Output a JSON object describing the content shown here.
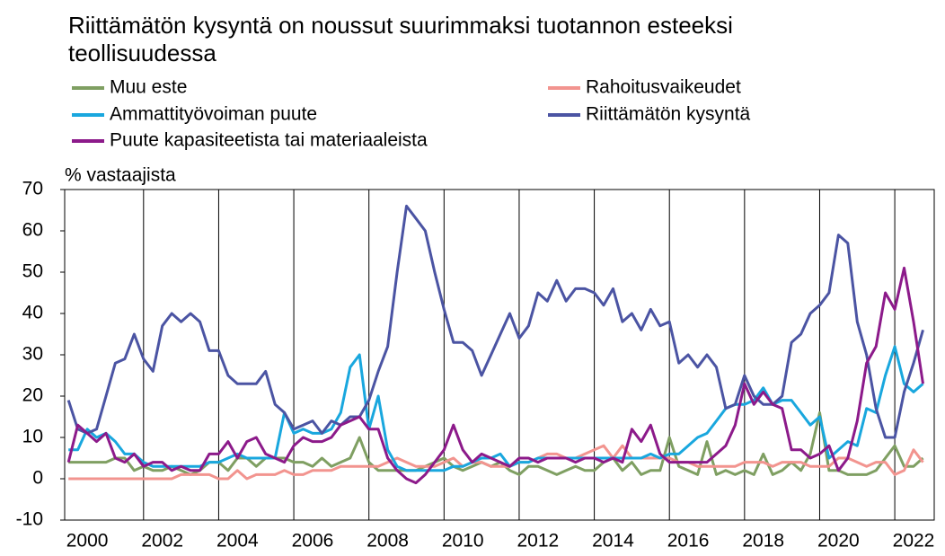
{
  "chart_data": {
    "type": "line",
    "title": "Riittämätön kysyntä on noussut suurimmaksi tuotannon esteeksi teollisuudessa",
    "ylabel": "% vastaajista",
    "x": [
      2000,
      2000.25,
      2000.5,
      2000.75,
      2001,
      2001.25,
      2001.5,
      2001.75,
      2002,
      2002.25,
      2002.5,
      2002.75,
      2003,
      2003.25,
      2003.5,
      2003.75,
      2004,
      2004.25,
      2004.5,
      2004.75,
      2005,
      2005.25,
      2005.5,
      2005.75,
      2006,
      2006.25,
      2006.5,
      2006.75,
      2007,
      2007.25,
      2007.5,
      2007.75,
      2008,
      2008.25,
      2008.5,
      2008.75,
      2009,
      2009.25,
      2009.5,
      2009.75,
      2010,
      2010.25,
      2010.5,
      2010.75,
      2011,
      2011.25,
      2011.5,
      2011.75,
      2012,
      2012.25,
      2012.5,
      2012.75,
      2013,
      2013.25,
      2013.5,
      2013.75,
      2014,
      2014.25,
      2014.5,
      2014.75,
      2015,
      2015.25,
      2015.5,
      2015.75,
      2016,
      2016.25,
      2016.5,
      2016.75,
      2017,
      2017.25,
      2017.5,
      2017.75,
      2018,
      2018.25,
      2018.5,
      2018.75,
      2019,
      2019.25,
      2019.5,
      2019.75,
      2020,
      2020.25,
      2020.5,
      2020.75,
      2021,
      2021.25,
      2021.5,
      2021.75,
      2022,
      2022.25,
      2022.5,
      2022.75
    ],
    "series": [
      {
        "name": "Muu este",
        "color": "#7f9f62",
        "values": [
          4,
          4,
          4,
          4,
          4,
          5,
          5,
          2,
          3,
          2,
          2,
          3,
          2,
          1,
          2,
          4,
          4,
          2,
          5,
          5,
          3,
          5,
          5,
          5,
          4,
          4,
          3,
          5,
          3,
          4,
          5,
          10,
          4,
          2,
          2,
          2,
          2,
          2,
          3,
          4,
          5,
          3,
          2,
          3,
          4,
          3,
          4,
          2,
          1,
          3,
          3,
          2,
          1,
          2,
          3,
          2,
          2,
          4,
          5,
          2,
          4,
          1,
          2,
          2,
          10,
          3,
          2,
          1,
          9,
          1,
          2,
          1,
          2,
          1,
          6,
          1,
          2,
          4,
          2,
          6,
          16,
          2,
          2,
          1,
          1,
          1,
          2,
          5,
          8,
          3,
          3,
          5
        ]
      },
      {
        "name": "Rahoitusvaikeudet",
        "color": "#f2948f",
        "values": [
          0,
          0,
          0,
          0,
          0,
          0,
          0,
          0,
          0,
          0,
          0,
          0,
          1,
          1,
          1,
          1,
          0,
          0,
          2,
          0,
          1,
          1,
          1,
          2,
          1,
          1,
          2,
          2,
          2,
          3,
          3,
          3,
          3,
          3,
          4,
          5,
          4,
          3,
          3,
          3,
          4,
          5,
          3,
          4,
          4,
          3,
          3,
          3,
          4,
          4,
          5,
          6,
          6,
          5,
          5,
          6,
          7,
          8,
          5,
          8,
          5,
          5,
          5,
          5,
          5,
          4,
          4,
          3,
          3,
          3,
          3,
          3,
          4,
          4,
          4,
          3,
          4,
          4,
          4,
          3,
          3,
          3,
          5,
          5,
          4,
          3,
          4,
          4,
          1,
          2,
          7,
          4
        ]
      },
      {
        "name": "Ammattityövoiman puute",
        "color": "#19a7de",
        "values": [
          7,
          7,
          12,
          10,
          11,
          9,
          6,
          6,
          4,
          3,
          3,
          3,
          3,
          3,
          3,
          4,
          4,
          5,
          6,
          5,
          5,
          5,
          5,
          16,
          11,
          12,
          11,
          11,
          12,
          16,
          27,
          30,
          12,
          20,
          7,
          3,
          2,
          2,
          2,
          2,
          2,
          3,
          3,
          4,
          5,
          5,
          6,
          3,
          4,
          4,
          5,
          5,
          5,
          5,
          5,
          5,
          5,
          5,
          5,
          5,
          5,
          5,
          6,
          5,
          6,
          6,
          8,
          10,
          11,
          14,
          17,
          18,
          18,
          19,
          22,
          18,
          19,
          19,
          16,
          13,
          15,
          5,
          7,
          9,
          8,
          17,
          16,
          25,
          32,
          23,
          21,
          23
        ]
      },
      {
        "name": "Riittämätön kysyntä",
        "color": "#4b54a3",
        "values": [
          19,
          12,
          11,
          12,
          20,
          28,
          29,
          35,
          29,
          26,
          37,
          40,
          38,
          40,
          38,
          31,
          31,
          25,
          23,
          23,
          23,
          26,
          18,
          16,
          12,
          13,
          14,
          11,
          14,
          13,
          15,
          15,
          19,
          26,
          32,
          50,
          66,
          63,
          60,
          50,
          41,
          33,
          33,
          31,
          25,
          30,
          35,
          40,
          34,
          37,
          45,
          43,
          48,
          43,
          46,
          46,
          45,
          42,
          46,
          38,
          40,
          36,
          41,
          37,
          38,
          28,
          30,
          27,
          30,
          27,
          17,
          18,
          25,
          20,
          18,
          18,
          20,
          33,
          35,
          40,
          42,
          45,
          59,
          57,
          38,
          30,
          17,
          10,
          10,
          21,
          28,
          36
        ]
      },
      {
        "name": "Puute kapasiteetista tai materiaaleista",
        "color": "#8c1a8a",
        "values": [
          4,
          13,
          11,
          9,
          11,
          5,
          4,
          6,
          3,
          4,
          4,
          2,
          3,
          2,
          2,
          6,
          6,
          9,
          5,
          9,
          10,
          6,
          5,
          4,
          8,
          10,
          9,
          9,
          10,
          13,
          14,
          15,
          12,
          12,
          5,
          2,
          0,
          -1,
          1,
          4,
          7,
          13,
          7,
          4,
          6,
          5,
          4,
          3,
          5,
          5,
          4,
          5,
          5,
          5,
          4,
          5,
          5,
          4,
          5,
          4,
          12,
          9,
          13,
          6,
          4,
          4,
          4,
          4,
          4,
          6,
          8,
          13,
          23,
          18,
          21,
          18,
          17,
          7,
          7,
          5,
          6,
          8,
          2,
          5,
          14,
          28,
          32,
          45,
          41,
          51,
          38,
          23
        ]
      }
    ],
    "xlim": [
      1999.9,
      2023.05
    ],
    "xticks": [
      2000,
      2002,
      2004,
      2006,
      2008,
      2010,
      2012,
      2014,
      2016,
      2018,
      2020,
      2022
    ],
    "ylim": [
      -10,
      70
    ],
    "yticks": [
      -10,
      0,
      10,
      20,
      30,
      40,
      50,
      60,
      70
    ],
    "xgrid": true
  }
}
